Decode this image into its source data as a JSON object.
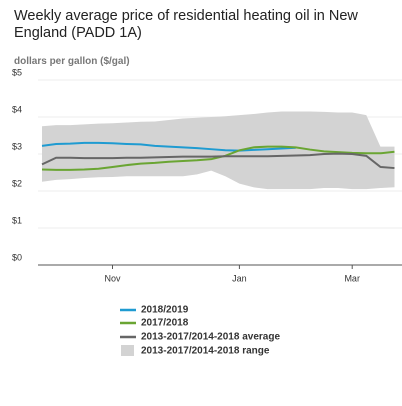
{
  "chart_data": {
    "type": "line",
    "title": "Weekly average price of residential heating oil in New England (PADD 1A)",
    "y_label": "dollars per gallon ($/gal)",
    "categories": [
      null,
      null,
      null,
      null,
      null,
      "Nov",
      null,
      null,
      null,
      null,
      null,
      null,
      null,
      null,
      "Jan",
      null,
      null,
      null,
      null,
      null,
      null,
      null,
      "Mar",
      null,
      null,
      null
    ],
    "ylim": [
      0,
      5
    ],
    "yticks": [
      {
        "value": 0,
        "label": "$0"
      },
      {
        "value": 1,
        "label": "$1"
      },
      {
        "value": 2,
        "label": "$2"
      },
      {
        "value": 3,
        "label": "$3"
      },
      {
        "value": 4,
        "label": "$4"
      },
      {
        "value": 5,
        "label": "$5"
      }
    ],
    "grid": true,
    "range": {
      "name": "2013-2017/2014-2018 range",
      "color": "#d3d3d3",
      "high": [
        3.75,
        3.78,
        3.78,
        3.8,
        3.82,
        3.83,
        3.85,
        3.87,
        3.88,
        3.92,
        3.96,
        3.98,
        4.0,
        4.02,
        4.05,
        4.08,
        4.12,
        4.15,
        4.15,
        4.15,
        4.14,
        4.12,
        4.12,
        4.05,
        3.2,
        3.2
      ],
      "low": [
        2.25,
        2.3,
        2.32,
        2.35,
        2.37,
        2.38,
        2.4,
        2.4,
        2.4,
        2.4,
        2.4,
        2.45,
        2.55,
        2.4,
        2.2,
        2.1,
        2.05,
        2.05,
        2.05,
        2.05,
        2.08,
        2.08,
        2.05,
        2.05,
        2.08,
        2.1
      ]
    },
    "series": [
      {
        "name": "2018/2019",
        "color": "#1f9bd1",
        "values": [
          3.22,
          3.27,
          3.28,
          3.3,
          3.3,
          3.29,
          3.27,
          3.26,
          3.22,
          3.2,
          3.18,
          3.16,
          3.13,
          3.1,
          3.09,
          3.11,
          3.13,
          3.15,
          3.17,
          null,
          null,
          null,
          null,
          null,
          null,
          null
        ]
      },
      {
        "name": "2017/2018",
        "color": "#6aa533",
        "values": [
          2.58,
          2.57,
          2.57,
          2.58,
          2.6,
          2.65,
          2.7,
          2.74,
          2.76,
          2.79,
          2.81,
          2.83,
          2.86,
          2.95,
          3.1,
          3.18,
          3.2,
          3.2,
          3.18,
          3.12,
          3.07,
          3.05,
          3.03,
          3.02,
          3.02,
          3.06
        ]
      },
      {
        "name": "2013-2017/2014-2018 average",
        "color": "#666666",
        "values": [
          2.72,
          2.9,
          2.9,
          2.89,
          2.89,
          2.89,
          2.9,
          2.9,
          2.91,
          2.92,
          2.93,
          2.93,
          2.93,
          2.94,
          2.94,
          2.94,
          2.94,
          2.95,
          2.96,
          2.97,
          3.0,
          3.01,
          3.0,
          2.95,
          2.65,
          2.62
        ]
      }
    ]
  }
}
